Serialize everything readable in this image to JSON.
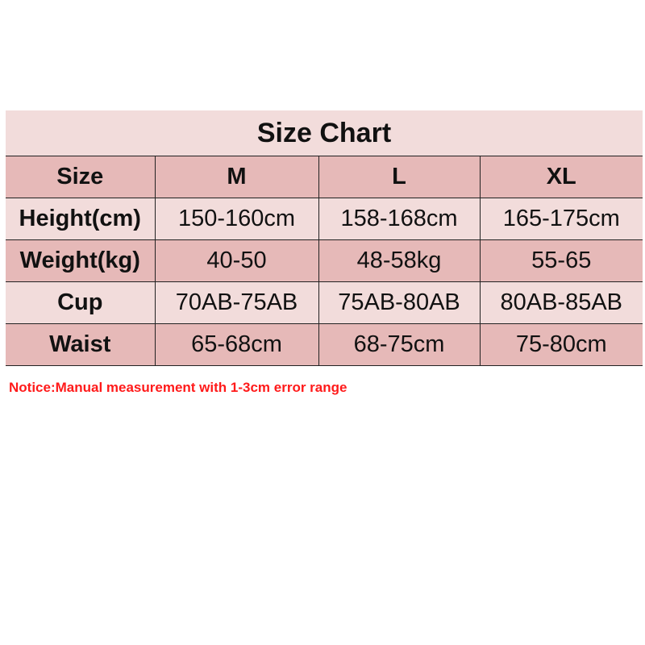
{
  "title": "Size Chart",
  "header": [
    "Size",
    "M",
    "L",
    "XL"
  ],
  "rows": [
    {
      "label": "Height(cm)",
      "values": [
        "150-160cm",
        "158-168cm",
        "165-175cm"
      ]
    },
    {
      "label": "Weight(kg)",
      "values": [
        "40-50",
        "48-58kg",
        "55-65"
      ]
    },
    {
      "label": "Cup",
      "values": [
        "70AB-75AB",
        "75AB-80AB",
        "80AB-85AB"
      ]
    },
    {
      "label": "Waist",
      "values": [
        "65-68cm",
        "68-75cm",
        "75-80cm"
      ]
    }
  ],
  "notice": "Notice:Manual measurement with 1-3cm error range",
  "colors": {
    "title_bg": "#f2dcdb",
    "dark_row": "#e6b9b8",
    "light_row": "#f2dcdb",
    "notice": "#ff1a1a"
  }
}
